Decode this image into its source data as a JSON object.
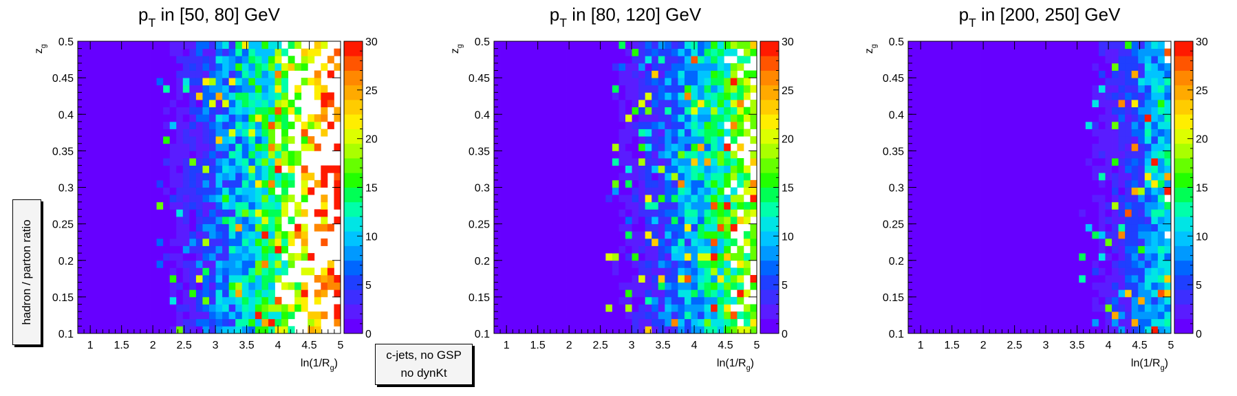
{
  "side_label": "hadron / parton ratio",
  "legend": {
    "line1": "c-jets, no GSP",
    "line2": "no dynKt"
  },
  "chart_data": [
    {
      "type": "heatmap",
      "title": "p_T in [50, 80] GeV",
      "title_parts": {
        "main": "p",
        "sub": "T",
        "rest": " in [50, 80] GeV"
      },
      "xlabel_parts": {
        "main": "ln(1/R",
        "sub": "g",
        "rest": ")"
      },
      "ylabel_parts": {
        "main": "z",
        "sub": "g"
      },
      "xlim": [
        0.8,
        5.0
      ],
      "ylim": [
        0.1,
        0.5
      ],
      "xticks": [
        1,
        1.5,
        2,
        2.5,
        3,
        3.5,
        4,
        4.5,
        5
      ],
      "xtick_labels": [
        "1",
        "1.5",
        "2",
        "2.5",
        "3",
        "3.5",
        "4",
        "4.5",
        "5"
      ],
      "yticks": [
        0.1,
        0.15,
        0.2,
        0.25,
        0.3,
        0.35,
        0.4,
        0.45,
        0.5
      ],
      "ytick_labels": [
        "0.1",
        "0.15",
        "0.2",
        "0.25",
        "0.3",
        "0.35",
        "0.4",
        "0.45",
        "0.5"
      ],
      "z_range": [
        0,
        30
      ],
      "z_ticks": [
        0,
        5,
        10,
        15,
        20,
        25,
        30
      ],
      "z_tick_labels": [
        "0",
        "5",
        "10",
        "15",
        "20",
        "25",
        "30"
      ],
      "nx": 40,
      "ny": 40,
      "profile": {
        "base": 0.4,
        "slope": 2.8,
        "x0": 2.1,
        "noise": 9.0,
        "x_noise": 3.0,
        "empty_x": 3.9,
        "empty_rate": 0.55,
        "seed": 11
      }
    },
    {
      "type": "heatmap",
      "title": "p_T in [80, 120] GeV",
      "title_parts": {
        "main": "p",
        "sub": "T",
        "rest": " in [80, 120] GeV"
      },
      "xlabel_parts": {
        "main": "ln(1/R",
        "sub": "g",
        "rest": ")"
      },
      "ylabel_parts": {
        "main": "z",
        "sub": "g"
      },
      "xlim": [
        0.8,
        5.0
      ],
      "ylim": [
        0.1,
        0.5
      ],
      "xticks": [
        1,
        1.5,
        2,
        2.5,
        3,
        3.5,
        4,
        4.5,
        5
      ],
      "xtick_labels": [
        "1",
        "1.5",
        "2",
        "2.5",
        "3",
        "3.5",
        "4",
        "4.5",
        "5"
      ],
      "yticks": [
        0.1,
        0.15,
        0.2,
        0.25,
        0.3,
        0.35,
        0.4,
        0.45,
        0.5
      ],
      "ytick_labels": [
        "0.1",
        "0.15",
        "0.2",
        "0.25",
        "0.3",
        "0.35",
        "0.4",
        "0.45",
        "0.5"
      ],
      "z_range": [
        0,
        30
      ],
      "z_ticks": [
        0,
        5,
        10,
        15,
        20,
        25,
        30
      ],
      "z_tick_labels": [
        "0",
        "5",
        "10",
        "15",
        "20",
        "25",
        "30"
      ],
      "nx": 40,
      "ny": 40,
      "profile": {
        "base": 0.3,
        "slope": 2.6,
        "x0": 2.6,
        "noise": 8.0,
        "x_noise": 3.5,
        "empty_x": 4.45,
        "empty_rate": 0.4,
        "seed": 23
      }
    },
    {
      "type": "heatmap",
      "title": "p_T in [200, 250] GeV",
      "title_parts": {
        "main": "p",
        "sub": "T",
        "rest": " in [200, 250] GeV"
      },
      "xlabel_parts": {
        "main": "ln(1/R",
        "sub": "g",
        "rest": ")"
      },
      "ylabel_parts": {
        "main": "z",
        "sub": "g"
      },
      "xlim": [
        0.8,
        5.0
      ],
      "ylim": [
        0.1,
        0.5
      ],
      "xticks": [
        1,
        1.5,
        2,
        2.5,
        3,
        3.5,
        4,
        4.5,
        5
      ],
      "xtick_labels": [
        "1",
        "1.5",
        "2",
        "2.5",
        "3",
        "3.5",
        "4",
        "4.5",
        "5"
      ],
      "yticks": [
        0.1,
        0.15,
        0.2,
        0.25,
        0.3,
        0.35,
        0.4,
        0.45,
        0.5
      ],
      "ytick_labels": [
        "0.1",
        "0.15",
        "0.2",
        "0.25",
        "0.3",
        "0.35",
        "0.4",
        "0.45",
        "0.5"
      ],
      "z_range": [
        0,
        30
      ],
      "z_ticks": [
        0,
        5,
        10,
        15,
        20,
        25,
        30
      ],
      "z_tick_labels": [
        "0",
        "5",
        "10",
        "15",
        "20",
        "25",
        "30"
      ],
      "nx": 40,
      "ny": 40,
      "profile": {
        "base": 0.2,
        "slope": 3.2,
        "x0": 3.5,
        "noise": 7.0,
        "x_noise": 4.0,
        "empty_x": 4.8,
        "empty_rate": 0.25,
        "seed": 37
      }
    }
  ]
}
